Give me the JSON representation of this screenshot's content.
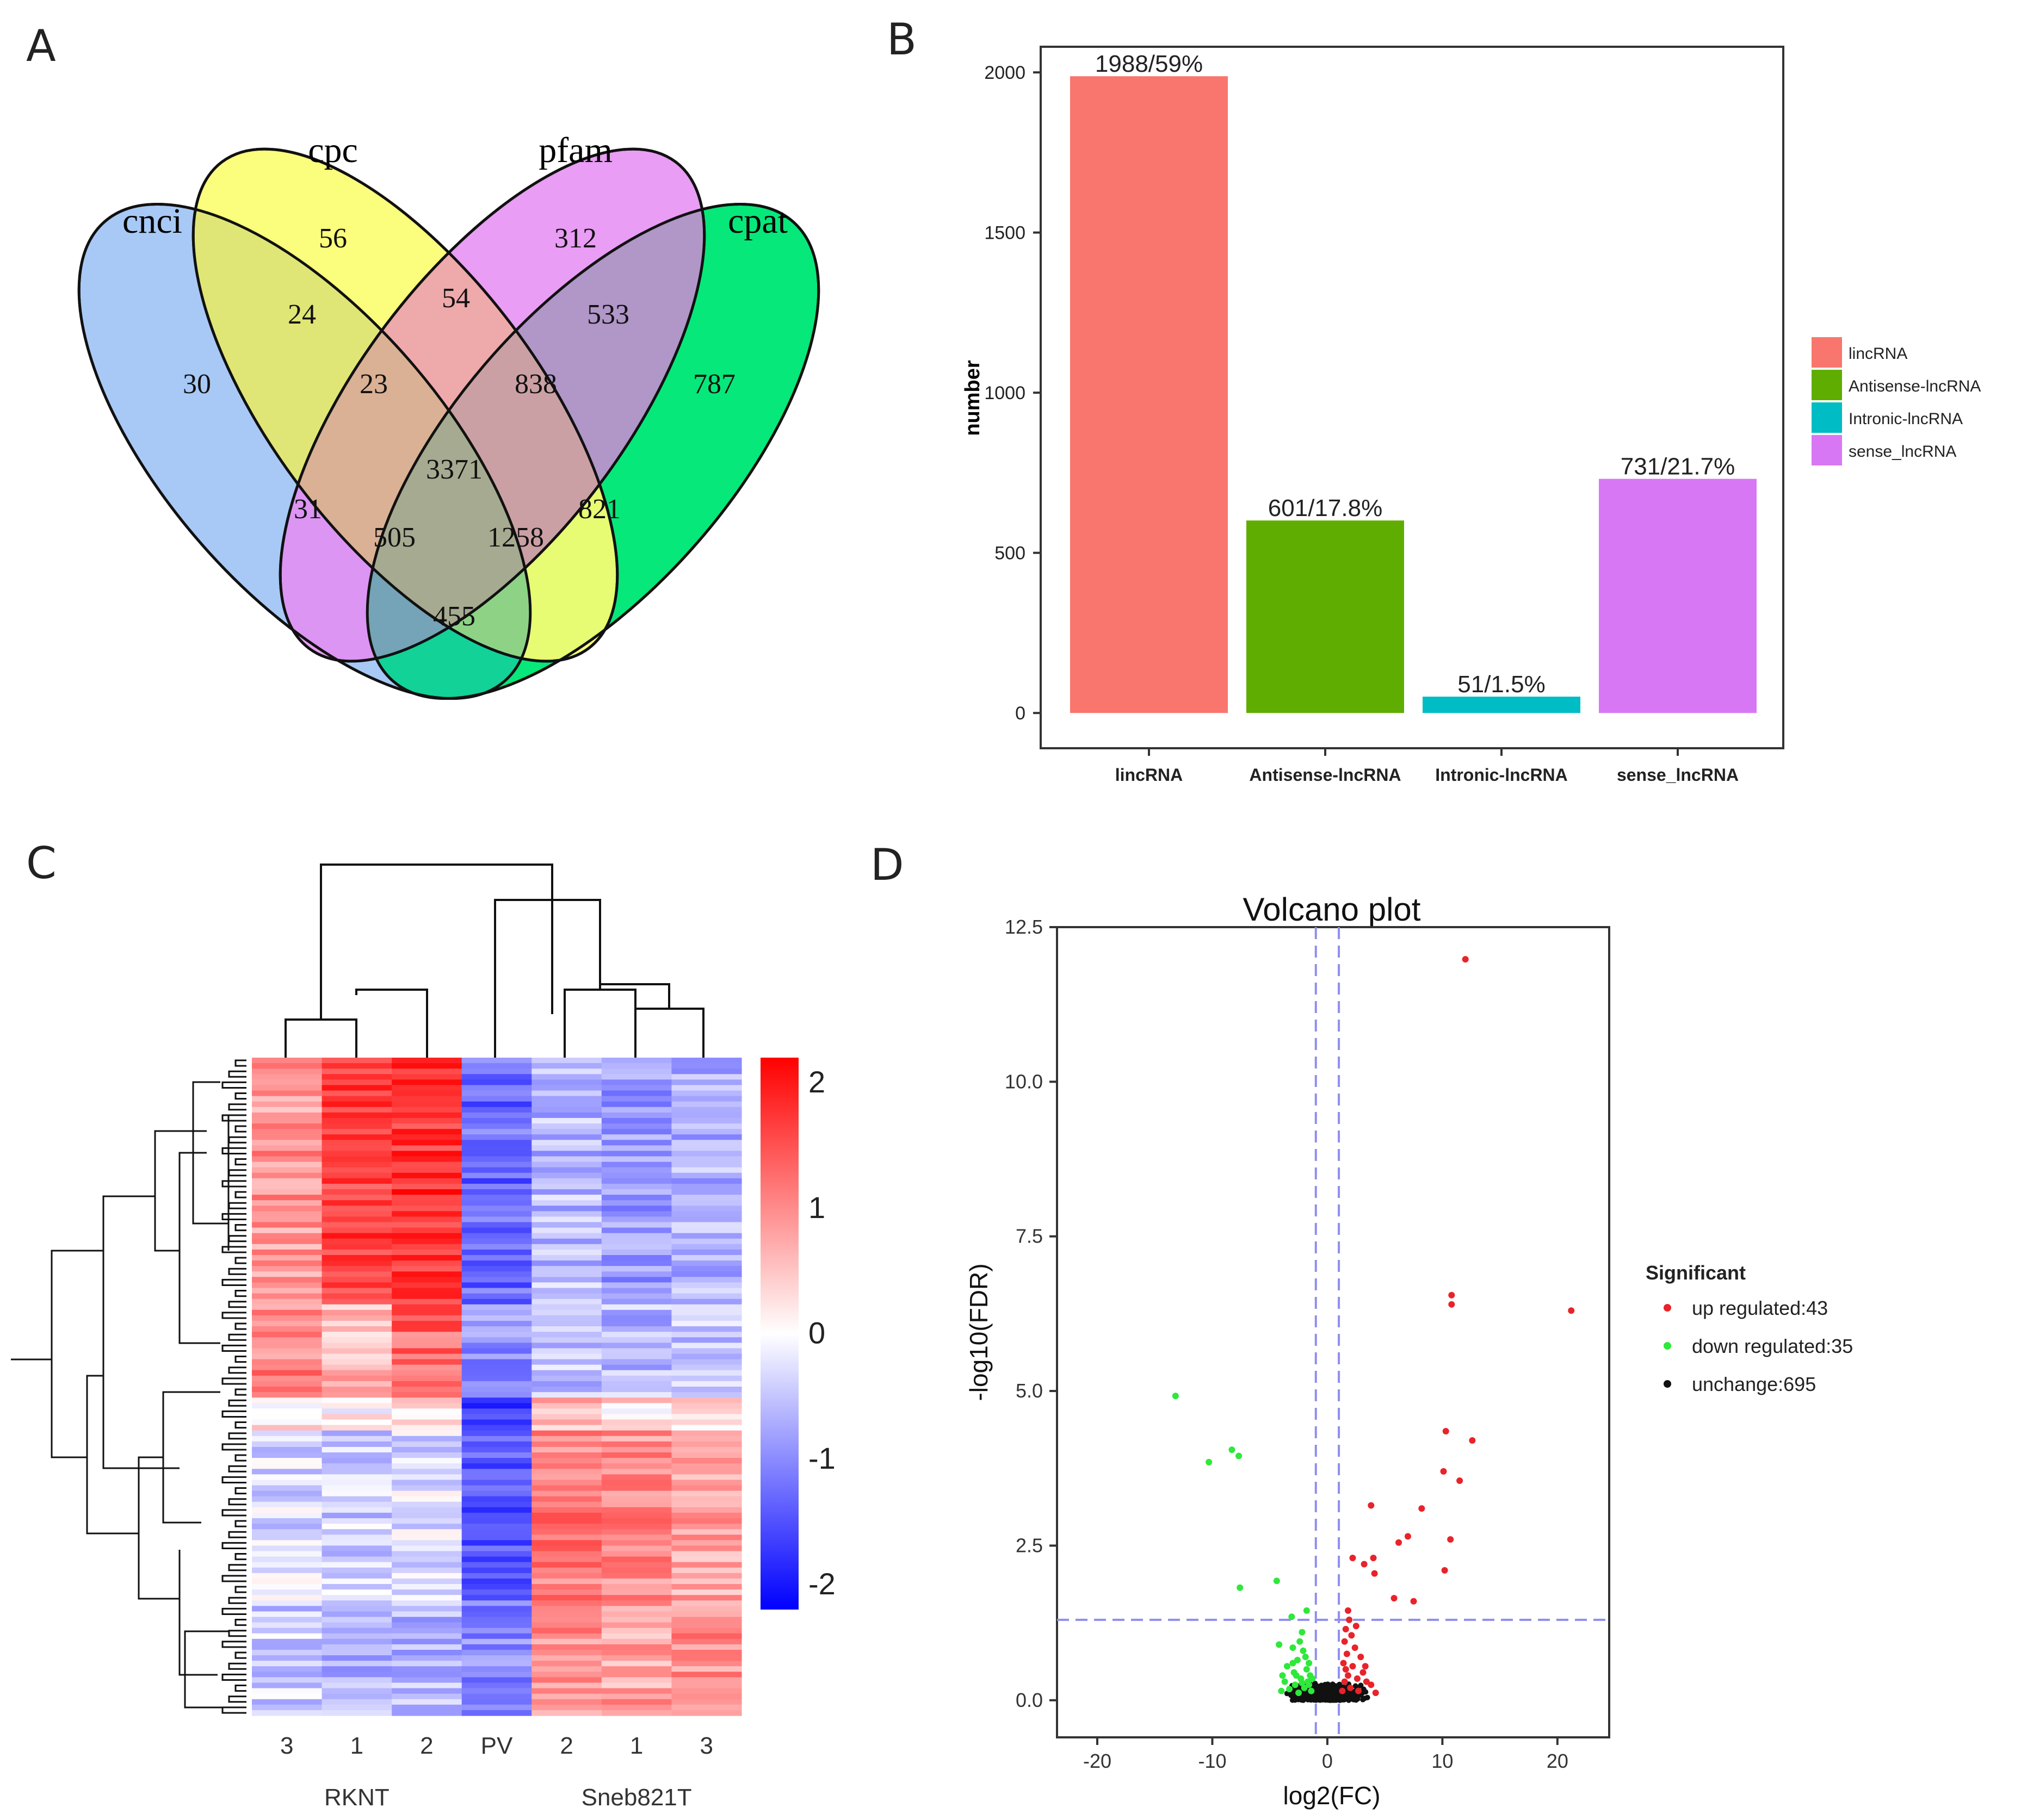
{
  "panels": {
    "a": {
      "label": "A"
    },
    "b": {
      "label": "B"
    },
    "c": {
      "label": "C"
    },
    "d": {
      "label": "D"
    }
  },
  "chart_data": [
    {
      "type": "venn",
      "panel": "A",
      "sets": [
        "cnci",
        "cpc",
        "pfam",
        "cpat"
      ],
      "colors": {
        "cnci": "#a8c9f5",
        "cpc": "#fbfd72",
        "pfam": "#e58cf2",
        "cpat": "#06e87a"
      },
      "regions": [
        {
          "sets": "cnci",
          "value": "30"
        },
        {
          "sets": "cpc",
          "value": "56"
        },
        {
          "sets": "pfam",
          "value": "312"
        },
        {
          "sets": "cpat",
          "value": "787"
        },
        {
          "sets": "cnci&cpc",
          "value": "24"
        },
        {
          "sets": "cpc&pfam",
          "value": "54"
        },
        {
          "sets": "pfam&cpat",
          "value": "533"
        },
        {
          "sets": "cnci&cpc&pfam",
          "value": "23"
        },
        {
          "sets": "cpc&pfam&cpat",
          "value": "838"
        },
        {
          "sets": "cnci&cpc&pfam&cpat",
          "value": "3371"
        },
        {
          "sets": "cnci&pfam",
          "value": "31"
        },
        {
          "sets": "cpc&cpat",
          "value": "821"
        },
        {
          "sets": "cnci&pfam&cpat",
          "value": "505"
        },
        {
          "sets": "cnci&cpc&cpat",
          "value": "1258"
        },
        {
          "sets": "cnci&cpat",
          "value": "455"
        }
      ]
    },
    {
      "type": "bar",
      "panel": "B",
      "categories": [
        "lincRNA",
        "Antisense-lncRNA",
        "Intronic-lncRNA",
        "sense_lncRNA"
      ],
      "values": [
        1988,
        601,
        51,
        731
      ],
      "data_labels": [
        "1988/59%",
        "601/17.8%",
        "51/1.5%",
        "731/21.7%"
      ],
      "colors": [
        "#f8766d",
        "#5fad00",
        "#00bcc4",
        "#d877f4"
      ],
      "ylabel": "number",
      "yticks": [
        0,
        500,
        1000,
        1500,
        2000
      ],
      "ylim": [
        -110,
        2080
      ],
      "legend": {
        "position": "right",
        "entries": [
          "lincRNA",
          "Antisense-lncRNA",
          "Intronic-lncRNA",
          "sense_lncRNA"
        ]
      }
    },
    {
      "type": "heatmap",
      "panel": "C",
      "columns": [
        "3",
        "1",
        "2",
        "PV",
        "2",
        "1",
        "3"
      ],
      "groups": [
        {
          "name": "RKNT",
          "columns": [
            0,
            1,
            2
          ]
        },
        {
          "name": "Sneb821T",
          "columns": [
            4,
            5,
            6
          ]
        }
      ],
      "n_rows": 120,
      "scale": {
        "min": -2.2,
        "max": 2.2,
        "ticks": [
          "2",
          "1",
          "0",
          "-1",
          "-2"
        ],
        "colors": [
          "#0000ff",
          "#ffffff",
          "#ff0000"
        ]
      },
      "block_means": [
        {
          "rows": 45,
          "values": [
            0.9,
            1.6,
            1.8,
            -1.3,
            -0.6,
            -0.9,
            -0.7
          ]
        },
        {
          "rows": 17,
          "values": [
            1.1,
            0.6,
            1.3,
            -0.9,
            -0.5,
            -0.6,
            -0.5
          ]
        },
        {
          "rows": 6,
          "values": [
            0.2,
            0.1,
            0.3,
            -1.8,
            0.6,
            0.3,
            0.2
          ]
        },
        {
          "rows": 31,
          "values": [
            -0.3,
            -0.4,
            -0.3,
            -1.5,
            1.1,
            1.0,
            0.8
          ]
        },
        {
          "rows": 21,
          "values": [
            -0.4,
            -0.6,
            -0.6,
            -1.0,
            1.0,
            0.8,
            1.0
          ]
        }
      ]
    },
    {
      "type": "scatter",
      "panel": "D",
      "title": "Volcano plot",
      "xlabel": "log2(FC)",
      "ylabel": "-log10(FDR)",
      "xlim": [
        -23.5,
        24.5
      ],
      "ylim": [
        -0.6,
        12.5
      ],
      "xticks": [
        -20,
        -10,
        0,
        10,
        20
      ],
      "yticks": [
        "0.0",
        "2.5",
        "5.0",
        "7.5",
        "10.0",
        "12.5"
      ],
      "thresholds": {
        "x": [
          -1,
          1
        ],
        "y": 1.3
      },
      "legend_title": "Significant",
      "series": [
        {
          "name": "up regulated:43",
          "color": "#e8232a",
          "points": [
            [
              12,
              11.98
            ],
            [
              21.2,
              6.3
            ],
            [
              10.8,
              6.55
            ],
            [
              10.8,
              6.4
            ],
            [
              10.3,
              4.35
            ],
            [
              12.6,
              4.2
            ],
            [
              10.1,
              3.7
            ],
            [
              11.5,
              3.55
            ],
            [
              3.8,
              3.15
            ],
            [
              8.2,
              3.1
            ],
            [
              7,
              2.65
            ],
            [
              6.2,
              2.55
            ],
            [
              10.7,
              2.6
            ],
            [
              4,
              2.3
            ],
            [
              2.2,
              2.3
            ],
            [
              3.2,
              2.2
            ],
            [
              10.2,
              2.1
            ],
            [
              4.1,
              2.05
            ],
            [
              5.8,
              1.65
            ],
            [
              7.5,
              1.6
            ],
            [
              1.8,
              1.45
            ],
            [
              1.9,
              1.3
            ],
            [
              1.6,
              1.15
            ],
            [
              2.1,
              1.05
            ],
            [
              1.5,
              0.95
            ],
            [
              2.4,
              0.85
            ],
            [
              1.7,
              0.75
            ],
            [
              2.9,
              0.7
            ],
            [
              1.4,
              0.6
            ],
            [
              2.2,
              0.55
            ],
            [
              3.1,
              0.45
            ],
            [
              1.8,
              0.4
            ],
            [
              2.6,
              0.35
            ],
            [
              3.4,
              0.3
            ],
            [
              1.5,
              0.3
            ],
            [
              2.0,
              0.2
            ],
            [
              3.8,
              0.25
            ],
            [
              2.7,
              0.15
            ],
            [
              1.3,
              0.15
            ],
            [
              4.2,
              0.12
            ],
            [
              1.6,
              0.5
            ],
            [
              2.5,
              1.2
            ],
            [
              3.3,
              0.55
            ]
          ]
        },
        {
          "name": "down regulated:35",
          "color": "#2ee83a",
          "points": [
            [
              -13.2,
              4.92
            ],
            [
              -8.3,
              4.05
            ],
            [
              -7.7,
              3.95
            ],
            [
              -10.3,
              3.85
            ],
            [
              -4.4,
              1.93
            ],
            [
              -7.6,
              1.82
            ],
            [
              -1.8,
              1.45
            ],
            [
              -3.1,
              1.35
            ],
            [
              -2.2,
              1.1
            ],
            [
              -4.2,
              0.9
            ],
            [
              -3.0,
              0.85
            ],
            [
              -1.9,
              0.7
            ],
            [
              -2.6,
              0.65
            ],
            [
              -3.5,
              0.55
            ],
            [
              -1.6,
              0.6
            ],
            [
              -2.9,
              0.45
            ],
            [
              -1.5,
              0.4
            ],
            [
              -2.3,
              0.35
            ],
            [
              -3.7,
              0.3
            ],
            [
              -1.7,
              0.3
            ],
            [
              -2.8,
              0.25
            ],
            [
              -2.0,
              0.2
            ],
            [
              -3.3,
              0.18
            ],
            [
              -1.4,
              0.15
            ],
            [
              -2.5,
              0.12
            ],
            [
              -4.0,
              0.15
            ],
            [
              -1.8,
              0.5
            ],
            [
              -2.1,
              0.8
            ],
            [
              -3.0,
              0.6
            ],
            [
              -2.4,
              0.95
            ],
            [
              -1.6,
              0.25
            ],
            [
              -2.7,
              0.4
            ],
            [
              -3.9,
              0.4
            ],
            [
              -1.3,
              0.35
            ],
            [
              -2.2,
              0.28
            ]
          ]
        },
        {
          "name": "unchange:695",
          "color": "#111111",
          "points": "cluster of 695 points near (0, 0)"
        }
      ]
    }
  ]
}
